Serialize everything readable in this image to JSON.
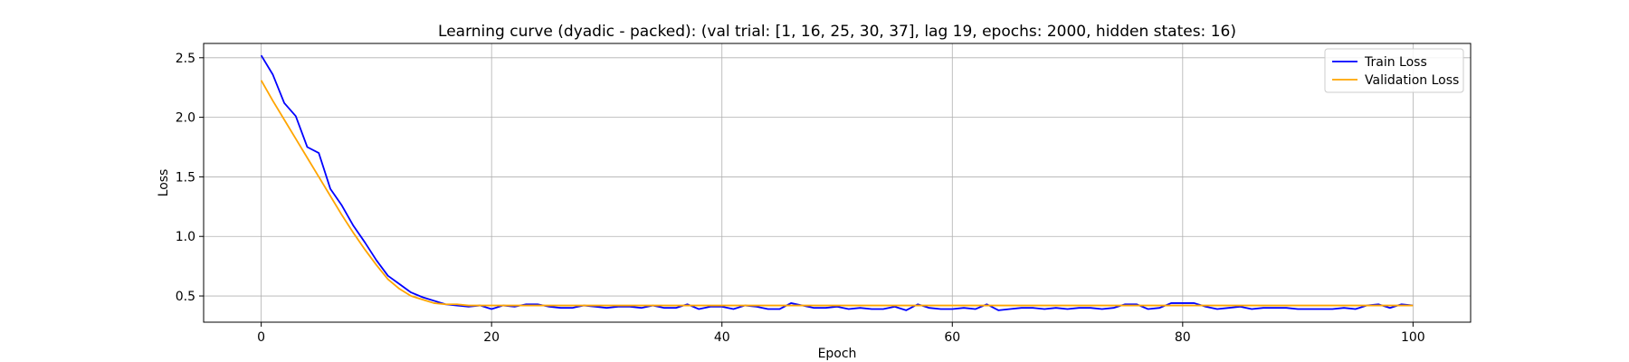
{
  "chart_data": {
    "type": "line",
    "title": "Learning curve (dyadic - packed): (val trial: [1, 16, 25, 30, 37], lag 19, epochs: 2000, hidden states: 16)",
    "xlabel": "Epoch",
    "ylabel": "Loss",
    "xlim": [
      -5,
      105
    ],
    "ylim": [
      0.28,
      2.62
    ],
    "xticks": [
      0,
      20,
      40,
      60,
      80,
      100
    ],
    "yticks": [
      0.5,
      1.0,
      1.5,
      2.0,
      2.5
    ],
    "xtick_labels": [
      "0",
      "20",
      "40",
      "60",
      "80",
      "100"
    ],
    "ytick_labels": [
      "0.5",
      "1.0",
      "1.5",
      "2.0",
      "2.5"
    ],
    "grid": true,
    "legend_position": "top-right",
    "series": [
      {
        "name": "Train Loss",
        "color": "#0000ff",
        "values": [
          2.52,
          2.36,
          2.12,
          2.01,
          1.75,
          1.7,
          1.4,
          1.26,
          1.09,
          0.95,
          0.8,
          0.67,
          0.6,
          0.53,
          0.49,
          0.46,
          0.43,
          0.42,
          0.41,
          0.42,
          0.39,
          0.42,
          0.41,
          0.43,
          0.43,
          0.41,
          0.4,
          0.4,
          0.42,
          0.41,
          0.4,
          0.41,
          0.41,
          0.4,
          0.42,
          0.4,
          0.4,
          0.43,
          0.39,
          0.41,
          0.41,
          0.39,
          0.42,
          0.41,
          0.39,
          0.39,
          0.44,
          0.42,
          0.4,
          0.4,
          0.41,
          0.39,
          0.4,
          0.39,
          0.39,
          0.41,
          0.38,
          0.43,
          0.4,
          0.39,
          0.39,
          0.4,
          0.39,
          0.43,
          0.38,
          0.39,
          0.4,
          0.4,
          0.39,
          0.4,
          0.39,
          0.4,
          0.4,
          0.39,
          0.4,
          0.43,
          0.43,
          0.39,
          0.4,
          0.44,
          0.44,
          0.44,
          0.41,
          0.39,
          0.4,
          0.41,
          0.39,
          0.4,
          0.4,
          0.4,
          0.39,
          0.39,
          0.39,
          0.39,
          0.4,
          0.39,
          0.42,
          0.43,
          0.4,
          0.43,
          0.42
        ]
      },
      {
        "name": "Validation Loss",
        "color": "#ffa500",
        "values": [
          2.31,
          2.14,
          1.98,
          1.82,
          1.66,
          1.5,
          1.34,
          1.18,
          1.03,
          0.89,
          0.76,
          0.64,
          0.56,
          0.5,
          0.47,
          0.44,
          0.43,
          0.43,
          0.42,
          0.42,
          0.42,
          0.42,
          0.42,
          0.42,
          0.42,
          0.42,
          0.42,
          0.42,
          0.42,
          0.42,
          0.42,
          0.42,
          0.42,
          0.42,
          0.42,
          0.42,
          0.42,
          0.42,
          0.42,
          0.42,
          0.42,
          0.42,
          0.42,
          0.42,
          0.42,
          0.42,
          0.42,
          0.42,
          0.42,
          0.42,
          0.42,
          0.42,
          0.42,
          0.42,
          0.42,
          0.42,
          0.42,
          0.42,
          0.42,
          0.42,
          0.42,
          0.42,
          0.42,
          0.42,
          0.42,
          0.42,
          0.42,
          0.42,
          0.42,
          0.42,
          0.42,
          0.42,
          0.42,
          0.42,
          0.42,
          0.42,
          0.42,
          0.42,
          0.42,
          0.42,
          0.42,
          0.42,
          0.42,
          0.42,
          0.42,
          0.42,
          0.42,
          0.42,
          0.42,
          0.42,
          0.42,
          0.42,
          0.42,
          0.42,
          0.42,
          0.42,
          0.42,
          0.42,
          0.42,
          0.42,
          0.42
        ]
      }
    ]
  }
}
